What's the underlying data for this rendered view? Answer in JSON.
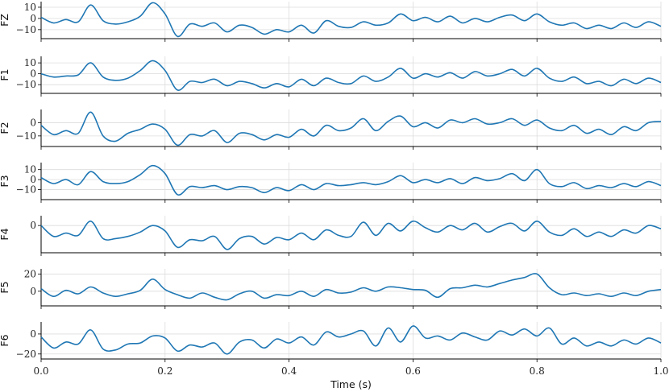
{
  "chart_data": {
    "type": "line",
    "xlabel": "Time (s)",
    "xlim": [
      0.0,
      1.0
    ],
    "x_ticks": [
      0.0,
      0.2,
      0.4,
      0.6,
      0.8,
      1.0
    ],
    "x_tick_labels": [
      "0.0",
      "0.2",
      "0.4",
      "0.6",
      "0.8",
      "1.0"
    ],
    "grid": true,
    "line_color": "#1f77b4",
    "grid_color": "#dcdcdc",
    "x": [
      0.0,
      0.02,
      0.04,
      0.06,
      0.08,
      0.1,
      0.12,
      0.14,
      0.16,
      0.18,
      0.2,
      0.22,
      0.24,
      0.26,
      0.28,
      0.3,
      0.32,
      0.34,
      0.36,
      0.38,
      0.4,
      0.42,
      0.44,
      0.46,
      0.48,
      0.5,
      0.52,
      0.54,
      0.56,
      0.58,
      0.6,
      0.62,
      0.64,
      0.66,
      0.68,
      0.7,
      0.72,
      0.74,
      0.76,
      0.78,
      0.8,
      0.82,
      0.84,
      0.86,
      0.88,
      0.9,
      0.92,
      0.94,
      0.96,
      0.98,
      1.0
    ],
    "series": [
      {
        "name": "FZ",
        "ylim": [
          -18,
          15
        ],
        "yticks": [
          10,
          0,
          -10
        ],
        "ytick_labels": [
          "10",
          "0",
          "−10"
        ],
        "values": [
          1,
          -4,
          -1,
          -3,
          12,
          -2,
          -5,
          -3,
          2,
          14,
          4,
          -16,
          -5,
          -7,
          -4,
          -12,
          -6,
          -8,
          -14,
          -10,
          -12,
          -6,
          -13,
          -2,
          -7,
          -8,
          -3,
          -6,
          -4,
          4,
          -2,
          1,
          -3,
          2,
          -4,
          0,
          -3,
          1,
          3,
          -2,
          4,
          -3,
          -6,
          -4,
          -9,
          -6,
          -9,
          -4,
          -8,
          -3,
          -7
        ]
      },
      {
        "name": "F1",
        "ylim": [
          -18,
          16
        ],
        "yticks": [
          10,
          0,
          -10
        ],
        "ytick_labels": [
          "10",
          "0",
          "−10"
        ],
        "values": [
          0,
          -3,
          -2,
          -1,
          10,
          -3,
          -6,
          -4,
          3,
          12,
          3,
          -15,
          -7,
          -8,
          -5,
          -11,
          -7,
          -9,
          -13,
          -9,
          -12,
          -5,
          -11,
          -4,
          -8,
          -9,
          -2,
          -7,
          -3,
          5,
          -4,
          0,
          -3,
          1,
          -4,
          2,
          -2,
          0,
          4,
          -2,
          5,
          -4,
          -7,
          -3,
          -9,
          -7,
          -11,
          -5,
          -9,
          -4,
          -8
        ]
      },
      {
        "name": "F2",
        "ylim": [
          -18,
          10
        ],
        "yticks": [
          0,
          -10
        ],
        "ytick_labels": [
          "0",
          "−10"
        ],
        "values": [
          -2,
          -9,
          -6,
          -8,
          8,
          -10,
          -14,
          -8,
          -5,
          -1,
          -5,
          -17,
          -9,
          -10,
          -6,
          -15,
          -8,
          -9,
          -13,
          -9,
          -11,
          -5,
          -10,
          -2,
          -6,
          -4,
          3,
          -6,
          1,
          5,
          -3,
          0,
          -4,
          2,
          0,
          3,
          -1,
          0,
          3,
          -2,
          2,
          -4,
          -6,
          -2,
          -8,
          -5,
          -9,
          -3,
          -6,
          0,
          1
        ]
      },
      {
        "name": "F3",
        "ylim": [
          -20,
          17
        ],
        "yticks": [
          10,
          0,
          -10
        ],
        "ytick_labels": [
          "10",
          "0",
          "−10"
        ],
        "values": [
          2,
          -4,
          0,
          -5,
          8,
          -2,
          -4,
          -2,
          5,
          14,
          6,
          -15,
          -7,
          -8,
          -6,
          -10,
          -7,
          -8,
          -13,
          -8,
          -11,
          -5,
          -10,
          -4,
          -6,
          -5,
          -3,
          -5,
          -2,
          4,
          -3,
          0,
          -3,
          1,
          -4,
          2,
          -1,
          1,
          6,
          -1,
          10,
          -4,
          -7,
          -3,
          -9,
          -6,
          -8,
          -4,
          -7,
          -2,
          -6
        ]
      },
      {
        "name": "F4",
        "ylim": [
          -25,
          9
        ],
        "yticks": [
          0
        ],
        "ytick_labels": [
          "0"
        ],
        "values": [
          0,
          -10,
          -7,
          -9,
          4,
          -12,
          -12,
          -10,
          -6,
          0,
          -5,
          -20,
          -13,
          -14,
          -10,
          -22,
          -12,
          -10,
          -17,
          -11,
          -13,
          -7,
          -13,
          -4,
          -9,
          -10,
          3,
          -9,
          2,
          -5,
          4,
          -2,
          -6,
          0,
          -4,
          2,
          -6,
          -1,
          2,
          -5,
          4,
          -6,
          -9,
          -3,
          -10,
          -6,
          -10,
          -4,
          -7,
          0,
          -3
        ]
      },
      {
        "name": "F5",
        "ylim": [
          -17,
          26
        ],
        "yticks": [
          20,
          0
        ],
        "ytick_labels": [
          "20",
          "0"
        ],
        "values": [
          3,
          -6,
          1,
          -3,
          5,
          -2,
          -6,
          -3,
          1,
          14,
          2,
          -4,
          -8,
          -2,
          -7,
          -10,
          -3,
          0,
          -8,
          -4,
          -5,
          0,
          -6,
          2,
          -2,
          -1,
          4,
          0,
          5,
          4,
          2,
          1,
          -7,
          3,
          4,
          7,
          5,
          9,
          13,
          16,
          20,
          4,
          -4,
          -2,
          -5,
          -3,
          -6,
          -2,
          -5,
          0,
          2
        ]
      },
      {
        "name": "F6",
        "ylim": [
          -25,
          12
        ],
        "yticks": [
          0,
          -20
        ],
        "ytick_labels": [
          "0",
          "−20"
        ],
        "values": [
          -3,
          -14,
          -8,
          -10,
          4,
          -15,
          -16,
          -10,
          -9,
          -2,
          -4,
          -17,
          -11,
          -13,
          -9,
          -20,
          -8,
          -6,
          -14,
          -5,
          -9,
          -3,
          -11,
          2,
          -3,
          0,
          3,
          -12,
          6,
          -8,
          8,
          -4,
          -2,
          -6,
          1,
          -3,
          -6,
          3,
          -1,
          5,
          -2,
          6,
          -10,
          -4,
          -12,
          -8,
          -12,
          -6,
          -10,
          -4,
          -9
        ]
      }
    ]
  }
}
